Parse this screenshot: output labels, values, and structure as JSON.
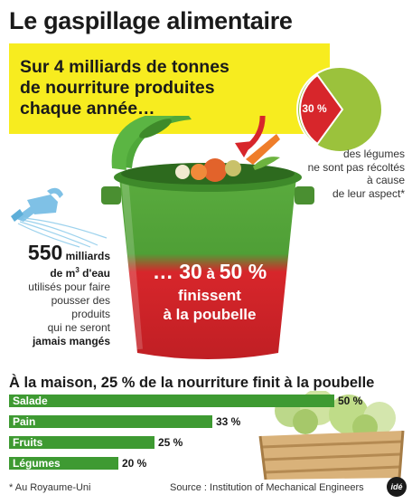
{
  "title": "Le gaspillage alimentaire",
  "headline": [
    "Sur 4 milliards de tonnes",
    "de nourriture produites",
    "chaque année…"
  ],
  "pie": {
    "percent_label": "30 %",
    "value": 30,
    "caption": [
      "des légumes",
      "ne sont pas récoltés",
      "à cause",
      "de leur aspect*"
    ]
  },
  "water": {
    "number": "550",
    "unit": "milliards",
    "line2": "de m",
    "sup": "3",
    "line2b": " d'eau",
    "line3": "utilisés pour faire",
    "line4": "pousser des produits",
    "line5": "qui ne seront",
    "line6": "jamais mangés"
  },
  "bin": {
    "prefix": "… ",
    "from": "30",
    "mid": " à ",
    "to": "50 %",
    "line2": "finissent",
    "line3": "à la poubelle"
  },
  "section_title": "À la maison, 25 % de la nourriture finit à la poubelle",
  "chart_data": {
    "type": "bar",
    "orientation": "horizontal",
    "categories": [
      "Salade",
      "Pain",
      "Fruits",
      "Légumes"
    ],
    "values": [
      50,
      33,
      25,
      20
    ],
    "value_labels": [
      "50 %",
      "33 %",
      "25 %",
      "20 %"
    ],
    "xlim": [
      0,
      50
    ]
  },
  "footnote": "* Au Royaume-Uni",
  "source": "Source : Institution of Mechanical Engineers",
  "logo": "idé",
  "colors": {
    "yellow": "#f7ec1f",
    "green": "#3e9a32",
    "red": "#d7262b",
    "light_green": "#9bc23c"
  }
}
